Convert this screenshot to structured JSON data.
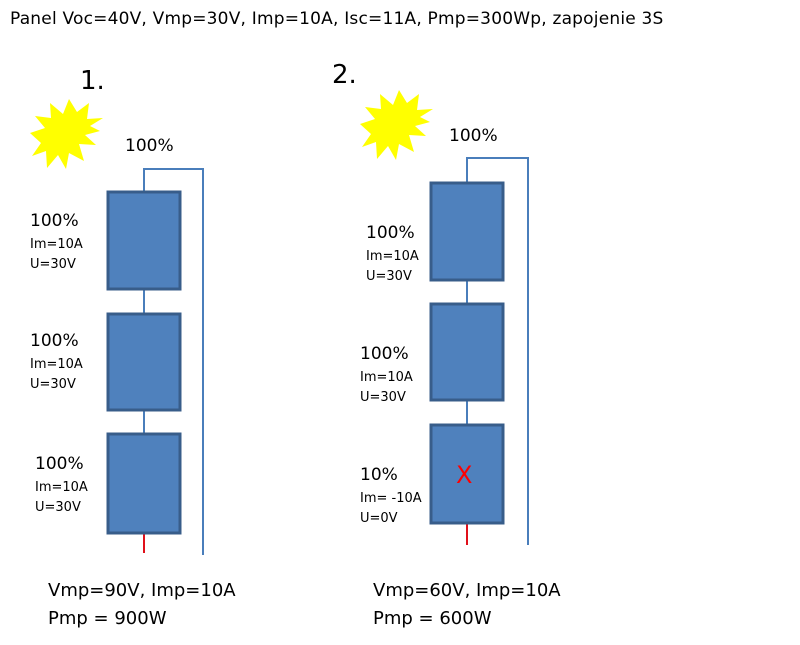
{
  "title": "Panel  Voc=40V, Vmp=30V, Imp=10A, Isc=11A, Pmp=300Wp, zapojenie 3S",
  "colors": {
    "panel_fill": "#4f81bd",
    "panel_border": "#385d8a",
    "wire": "#4a7ebb",
    "minus_lead": "#e0101a",
    "fault_mark": "#ff0000",
    "sun": "#ffff00"
  },
  "scenario1": {
    "number": "1.",
    "sun_icon": "sun-icon",
    "sun_percent": "100%",
    "panels": [
      {
        "percent": "100%",
        "current": "Im=10A",
        "voltage": "U=30V"
      },
      {
        "percent": "100%",
        "current": "Im=10A",
        "voltage": "U=30V"
      },
      {
        "percent": "100%",
        "current": "Im=10A",
        "voltage": "U=30V"
      }
    ],
    "result_line1": "Vmp=90V, Imp=10A",
    "result_line2": "Pmp = 900W"
  },
  "scenario2": {
    "number": "2.",
    "sun_icon": "sun-icon",
    "sun_percent": "100%",
    "panels": [
      {
        "percent": "100%",
        "current": "Im=10A",
        "voltage": "U=30V"
      },
      {
        "percent": "100%",
        "current": "Im=10A",
        "voltage": "U=30V"
      },
      {
        "percent": "10%",
        "current": "Im= -10A",
        "voltage": "U=0V",
        "fault_mark": "X"
      }
    ],
    "result_line1": "Vmp=60V, Imp=10A",
    "result_line2": "Pmp = 600W"
  }
}
